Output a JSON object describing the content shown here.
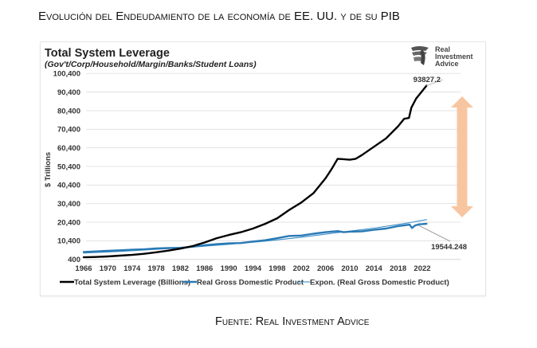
{
  "document": {
    "title": "Evolución del Endeudamiento de la economía de EE. UU. y de su PIB",
    "source": "Fuente: Real Investment Advice"
  },
  "logo": {
    "line1": "Real",
    "line2": "Investment",
    "line3": "Advice",
    "icon": "eagle-head-icon"
  },
  "colors": {
    "leverage": "#000000",
    "gdp": "#2a7ab5",
    "trend": "#3a8cc8",
    "arrow": "#f7c6a0",
    "grid": "#e3e3e3"
  },
  "chart_data": {
    "type": "line",
    "title": "Total System Leverage",
    "subtitle": "(Gov't/Corp/Household/Margin/Banks/Student Loans)",
    "xlabel": "",
    "ylabel": "$ Trillions",
    "ylim": [
      400,
      100400
    ],
    "xlim": [
      1966,
      2023
    ],
    "grid": true,
    "legend_position": "bottom",
    "y_ticks": [
      "400",
      "10,400",
      "20,400",
      "30,400",
      "40,400",
      "50,400",
      "60,400",
      "70,400",
      "80,400",
      "90,400",
      "100,400"
    ],
    "y_tick_values": [
      400,
      10400,
      20400,
      30400,
      40400,
      50400,
      60400,
      70400,
      80400,
      90400,
      100400
    ],
    "x_ticks": [
      "1966",
      "1970",
      "1974",
      "1978",
      "1982",
      "1986",
      "1990",
      "1994",
      "1998",
      "2002",
      "2006",
      "2010",
      "2014",
      "2018",
      "2022"
    ],
    "series": [
      {
        "name": "Total System Leverage (Billions)",
        "x": [
          1966,
          1968,
          1970,
          1972,
          1974,
          1976,
          1978,
          1980,
          1982,
          1984,
          1986,
          1988,
          1990,
          1992,
          1994,
          1996,
          1998,
          2000,
          2002,
          2004,
          2006,
          2007,
          2008,
          2009,
          2010,
          2011,
          2012,
          2014,
          2016,
          2018,
          2019,
          2019.8,
          2020.2,
          2021,
          2022,
          2022.7
        ],
        "values": [
          1500,
          1700,
          2000,
          2400,
          2800,
          3400,
          4200,
          5100,
          6200,
          7500,
          9500,
          11800,
          13500,
          15000,
          17000,
          19500,
          22500,
          27000,
          31000,
          36000,
          44000,
          49000,
          54500,
          54300,
          54000,
          54500,
          56500,
          61000,
          65500,
          72000,
          76000,
          76500,
          82000,
          87000,
          91000,
          93827.2
        ],
        "end_label": "93827.2"
      },
      {
        "name": "Real Gross Domestic Product",
        "x": [
          1966,
          1968,
          1970,
          1972,
          1974,
          1976,
          1978,
          1980,
          1982,
          1984,
          1986,
          1988,
          1990,
          1992,
          1994,
          1996,
          1998,
          2000,
          2002,
          2004,
          2006,
          2008,
          2009,
          2010,
          2012,
          2014,
          2016,
          2018,
          2019.9,
          2020.3,
          2020.8,
          2021.5,
          2022,
          2022.7
        ],
        "values": [
          4400,
          4700,
          5000,
          5300,
          5600,
          5800,
          6300,
          6500,
          6600,
          7200,
          8000,
          8600,
          9000,
          9200,
          10000,
          10700,
          11800,
          13000,
          13200,
          14200,
          15000,
          15600,
          15000,
          15300,
          15500,
          16300,
          17000,
          18300,
          19100,
          17300,
          18600,
          19300,
          19400,
          19544.248
        ],
        "end_label": "19544.248"
      },
      {
        "name": "Expon. (Real Gross Domestic Product)",
        "type": "exponential-trend",
        "x": [
          1966,
          1972,
          1978,
          1984,
          1990,
          1996,
          2002,
          2008,
          2014,
          2020,
          2022.7
        ],
        "values": [
          3800,
          4700,
          5800,
          7000,
          8500,
          10200,
          12300,
          14800,
          17200,
          20200,
          21800
        ]
      }
    ],
    "annotations": [
      {
        "type": "double-arrow",
        "from_value": 20400,
        "to_value": 88400,
        "x": 2021,
        "meaning": "gap between leverage and GDP"
      }
    ]
  }
}
